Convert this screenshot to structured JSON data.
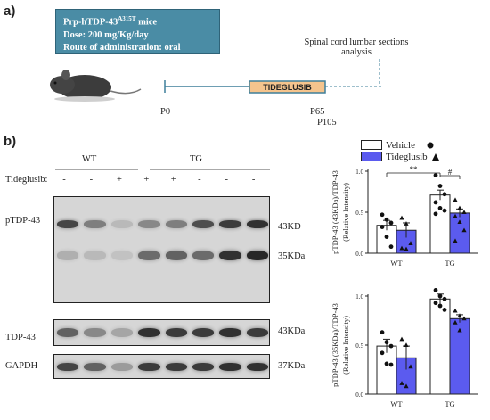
{
  "panel_a": {
    "label": "a)",
    "info_box": {
      "line1_main": "Prp-hTDP-43",
      "line1_sup": "A315T",
      "line1_tail": " mice",
      "line2": "Dose: 200 mg/Kg/day",
      "line3": "Route of administration: oral"
    },
    "timeline": {
      "start": "P0",
      "treatment_start": "P65",
      "end": "P105",
      "treatment_label": "TIDEGLUSIB"
    },
    "analysis_line1": "Spinal cord lumbar sections",
    "analysis_line2": "analysis",
    "colors": {
      "box": "#4a8ca5",
      "timeline": "#3e7f9a",
      "treatment": "#f5c48d"
    }
  },
  "panel_b": {
    "label": "b)",
    "groups": [
      "WT",
      "TG"
    ],
    "treatment_row_label": "Tideglusib:",
    "treatment_marks": [
      "-",
      "-",
      "+",
      "+",
      "+",
      "-",
      "-",
      "-"
    ],
    "blot_labels": [
      "pTDP-43",
      "TDP-43",
      "GAPDH"
    ],
    "kda_labels": [
      "43KD",
      "35KDa",
      "43KDa",
      "37KDa"
    ],
    "legend": [
      {
        "name": "Vehicle",
        "color": "#ffffff",
        "marker": "circle"
      },
      {
        "name": "Tideglusib",
        "color": "#5b5bef",
        "marker": "triangle"
      }
    ]
  },
  "chart_data": [
    {
      "type": "bar",
      "title": "",
      "ylabel": "pTDP-43 (43KDa)/TDP-43",
      "ylabel2": "(Relative Intensity)",
      "categories": [
        "WT",
        "TG"
      ],
      "ylim": [
        0,
        1.0
      ],
      "yticks": [
        "0.0",
        "0.5",
        "1.0"
      ],
      "series": [
        {
          "name": "Vehicle",
          "values": [
            0.34,
            0.71
          ],
          "errors": [
            0.06,
            0.06
          ],
          "points": [
            [
              0.47,
              0.41,
              0.37,
              0.32,
              0.2,
              0.08
            ],
            [
              0.95,
              0.82,
              0.72,
              0.62,
              0.55,
              0.52,
              0.48
            ]
          ]
        },
        {
          "name": "Tideglusib",
          "values": [
            0.28,
            0.49
          ],
          "errors": [
            0.09,
            0.05
          ],
          "points": [
            [
              0.43,
              0.36,
              0.12,
              0.06,
              0.05
            ],
            [
              0.65,
              0.55,
              0.5,
              0.45,
              0.38,
              0.28,
              0.15
            ]
          ]
        }
      ],
      "annotations": [
        "**",
        "#"
      ]
    },
    {
      "type": "bar",
      "title": "",
      "ylabel": "pTDP-43 (35KDa)/TDP-43",
      "ylabel2": "(Relative Intensity)",
      "categories": [
        "WT",
        "TG"
      ],
      "ylim": [
        0,
        1.0
      ],
      "yticks": [
        "0.0",
        "0.5",
        "1.0"
      ],
      "series": [
        {
          "name": "Vehicle",
          "values": [
            0.49,
            0.97
          ],
          "errors": [
            0.07,
            0.05
          ],
          "points": [
            [
              0.63,
              0.53,
              0.49,
              0.42,
              0.31,
              0.3
            ],
            [
              1.06,
              1.0,
              0.97,
              0.93,
              0.9,
              0.86
            ]
          ]
        },
        {
          "name": "Tideglusib",
          "values": [
            0.37,
            0.77
          ],
          "errors": [
            0.12,
            0.04
          ],
          "points": [
            [
              0.56,
              0.5,
              0.28,
              0.11,
              0.08
            ],
            [
              0.85,
              0.8,
              0.77,
              0.73,
              0.65
            ]
          ]
        }
      ]
    }
  ]
}
